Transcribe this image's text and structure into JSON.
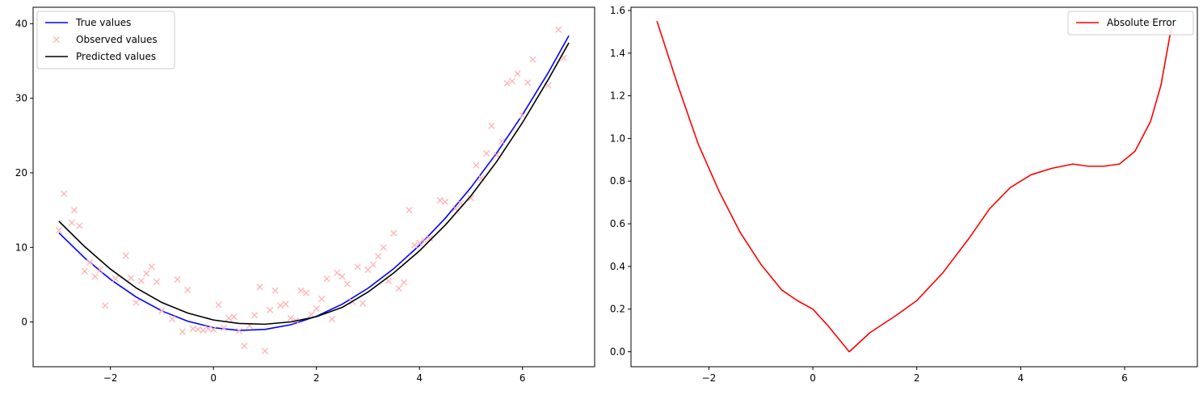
{
  "chart_data": [
    {
      "type": "line",
      "xlim": [
        -3.5,
        7.4
      ],
      "ylim": [
        -6.0,
        42.2
      ],
      "xticks": [
        -2,
        0,
        2,
        4,
        6
      ],
      "xtick_labels": [
        "−2",
        "0",
        "2",
        "4",
        "6"
      ],
      "yticks": [
        0,
        10,
        20,
        30,
        40
      ],
      "ytick_labels": [
        "0",
        "10",
        "20",
        "30",
        "40"
      ],
      "legend_position": "upper-left",
      "series": [
        {
          "name": "True values",
          "kind": "line",
          "color": "#0000ff",
          "x": [
            -3.0,
            -2.5,
            -2.0,
            -1.5,
            -1.0,
            -0.5,
            0.0,
            0.5,
            1.0,
            1.5,
            2.0,
            2.5,
            3.0,
            3.5,
            4.0,
            4.5,
            5.0,
            5.5,
            6.0,
            6.5,
            6.9
          ],
          "y": [
            11.96,
            8.59,
            5.72,
            3.35,
            1.48,
            0.11,
            -0.76,
            -1.13,
            -1.0,
            -0.37,
            0.76,
            2.39,
            4.52,
            7.15,
            10.28,
            13.91,
            18.04,
            22.67,
            27.8,
            33.43,
            38.4
          ]
        },
        {
          "name": "Observed values",
          "kind": "scatter",
          "marker": "x",
          "color": "#ffb3b3",
          "x": [
            -3.0,
            -2.9,
            -2.75,
            -2.7,
            -2.6,
            -2.5,
            -2.4,
            -2.3,
            -2.2,
            -2.1,
            -1.9,
            -1.7,
            -1.6,
            -1.5,
            -1.4,
            -1.3,
            -1.2,
            -1.1,
            -1.0,
            -0.8,
            -0.7,
            -0.6,
            -0.5,
            -0.4,
            -0.3,
            -0.2,
            -0.1,
            0.0,
            0.1,
            0.2,
            0.3,
            0.4,
            0.5,
            0.6,
            0.7,
            0.8,
            0.9,
            1.0,
            1.1,
            1.2,
            1.3,
            1.4,
            1.5,
            1.6,
            1.7,
            1.8,
            1.9,
            2.0,
            2.1,
            2.2,
            2.3,
            2.4,
            2.5,
            2.6,
            2.7,
            2.8,
            2.9,
            3.0,
            3.1,
            3.2,
            3.3,
            3.4,
            3.5,
            3.6,
            3.7,
            3.8,
            3.9,
            4.0,
            4.1,
            4.2,
            4.4,
            4.5,
            4.7,
            4.8,
            5.0,
            5.1,
            5.2,
            5.3,
            5.4,
            5.5,
            5.6,
            5.7,
            5.8,
            5.9,
            6.0,
            6.1,
            6.2,
            6.5,
            6.7,
            6.8
          ],
          "y": [
            12.3,
            17.2,
            13.3,
            15.0,
            12.9,
            6.8,
            8.0,
            6.1,
            7.0,
            2.2,
            5.8,
            8.9,
            5.9,
            2.6,
            5.5,
            6.5,
            7.4,
            5.4,
            1.5,
            0.4,
            5.7,
            -1.3,
            4.3,
            -0.9,
            -1.0,
            -1.1,
            -0.9,
            -1.0,
            2.3,
            -0.8,
            0.5,
            0.7,
            -1.2,
            -3.2,
            -0.5,
            0.9,
            4.7,
            -3.9,
            1.6,
            4.2,
            2.2,
            2.4,
            0.5,
            0.2,
            4.2,
            3.9,
            1.0,
            1.8,
            3.1,
            5.8,
            0.4,
            6.6,
            6.1,
            5.1,
            2.7,
            7.4,
            2.5,
            7.0,
            7.7,
            8.8,
            10.0,
            5.5,
            11.9,
            4.5,
            5.3,
            15.0,
            10.3,
            10.6,
            10.9,
            11.2,
            16.3,
            16.1,
            15.2,
            15.9,
            16.6,
            21.0,
            19.3,
            22.6,
            26.3,
            22.4,
            24.2,
            32.0,
            32.3,
            33.3,
            27.7,
            32.1,
            35.2,
            31.7,
            39.2,
            35.4
          ]
        },
        {
          "name": "Predicted values",
          "kind": "line",
          "color": "#000000",
          "x": [
            -3.0,
            -2.5,
            -2.0,
            -1.5,
            -1.0,
            -0.5,
            0.0,
            0.5,
            1.0,
            1.5,
            2.0,
            2.5,
            3.0,
            3.5,
            4.0,
            4.5,
            5.0,
            5.5,
            6.0,
            6.5,
            6.9
          ],
          "y": [
            13.51,
            10.11,
            7.1,
            4.57,
            2.61,
            1.2,
            0.27,
            -0.2,
            -0.3,
            0.01,
            0.71,
            1.96,
            4.01,
            6.58,
            9.54,
            12.99,
            16.92,
            21.52,
            26.74,
            32.51,
            37.44
          ]
        }
      ]
    },
    {
      "type": "line",
      "xlim": [
        -3.5,
        7.4
      ],
      "ylim": [
        -0.07,
        1.615
      ],
      "xticks": [
        -2,
        0,
        2,
        4,
        6
      ],
      "xtick_labels": [
        "−2",
        "0",
        "2",
        "4",
        "6"
      ],
      "yticks": [
        0.0,
        0.2,
        0.4,
        0.6,
        0.8,
        1.0,
        1.2,
        1.4,
        1.6
      ],
      "ytick_labels": [
        "0.0",
        "0.2",
        "0.4",
        "0.6",
        "0.8",
        "1.0",
        "1.2",
        "1.4",
        "1.6"
      ],
      "legend_position": "upper-right",
      "series": [
        {
          "name": "Absolute Error",
          "kind": "line",
          "color": "#ff0000",
          "x": [
            -3.0,
            -2.6,
            -2.2,
            -1.8,
            -1.4,
            -1.0,
            -0.6,
            -0.3,
            0.0,
            0.3,
            0.7,
            1.1,
            1.6,
            2.0,
            2.5,
            3.0,
            3.4,
            3.8,
            4.2,
            4.6,
            5.0,
            5.3,
            5.6,
            5.9,
            6.2,
            6.5,
            6.7,
            6.9
          ],
          "y": [
            1.55,
            1.25,
            0.97,
            0.75,
            0.56,
            0.41,
            0.29,
            0.24,
            0.2,
            0.12,
            0.0,
            0.09,
            0.17,
            0.24,
            0.37,
            0.53,
            0.67,
            0.77,
            0.83,
            0.86,
            0.88,
            0.87,
            0.87,
            0.88,
            0.94,
            1.08,
            1.25,
            1.52
          ]
        }
      ]
    }
  ]
}
